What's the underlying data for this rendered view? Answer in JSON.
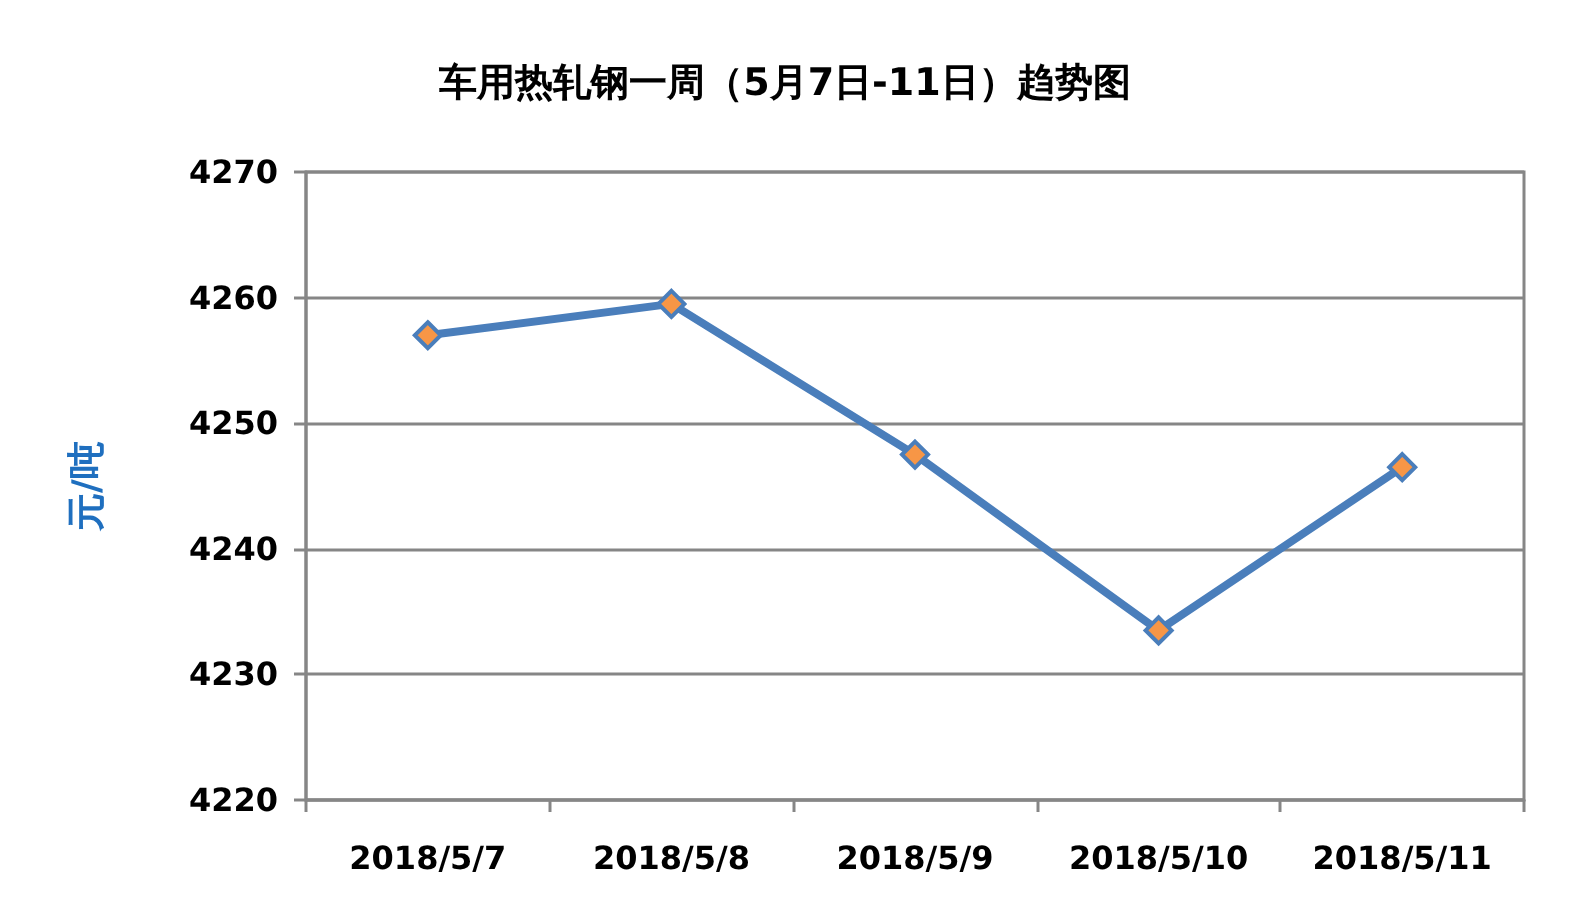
{
  "chart_data": {
    "type": "line",
    "title": "车用热轧钢一周（5月7日-11日）趋势图",
    "ylabel": "元/吨",
    "categories": [
      "2018/5/7",
      "2018/5/8",
      "2018/5/9",
      "2018/5/10",
      "2018/5/11"
    ],
    "series": [
      {
        "color": "#4a7ebb",
        "values": [
          4257,
          4259.5,
          4247.5,
          4233.5,
          4246.5
        ]
      }
    ],
    "ylim": [
      4220,
      4270
    ],
    "yticks": [
      4220,
      4230,
      4240,
      4250,
      4260,
      4270
    ],
    "grid": "y",
    "marker": "diamond",
    "line_style": "solid"
  }
}
